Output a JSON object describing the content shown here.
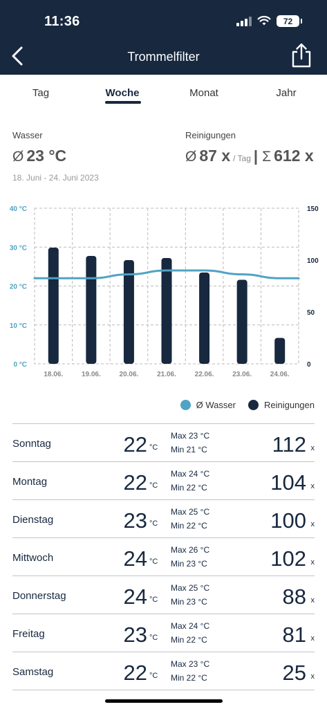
{
  "status": {
    "time": "11:36",
    "battery": "72"
  },
  "nav": {
    "title": "Trommelfilter",
    "back_icon": "chevron-left-icon",
    "share_icon": "share-icon"
  },
  "tabs": [
    {
      "label": "Tag",
      "active": false
    },
    {
      "label": "Woche",
      "active": true
    },
    {
      "label": "Monat",
      "active": false
    },
    {
      "label": "Jahr",
      "active": false
    }
  ],
  "summary": {
    "water_label": "Wasser",
    "water_symbol": "Ø",
    "water_value": "23 °C",
    "cleaning_label": "Reinigungen",
    "cleaning_symbol": "Ø",
    "cleaning_avg": "87 x",
    "per_day": "/ Tag",
    "separator": "|",
    "sum_symbol": "Σ",
    "cleaning_sum": "612 x",
    "date_range": "18. Juni - 24. Juni 2023"
  },
  "chart_data": {
    "type": "bar",
    "categories": [
      "18.06.",
      "19.06.",
      "20.06.",
      "21.06.",
      "22.06.",
      "23.06.",
      "24.06."
    ],
    "series": [
      {
        "name": "Reinigungen",
        "type": "bar",
        "axis": "right",
        "values": [
          112,
          104,
          100,
          102,
          88,
          81,
          25
        ],
        "color": "#17283f"
      },
      {
        "name": "Ø Wasser",
        "type": "line",
        "axis": "left",
        "values": [
          22,
          22,
          23,
          24,
          24,
          23,
          22
        ],
        "color": "#4fa3c4"
      }
    ],
    "y_left": {
      "min": 0,
      "max": 40,
      "ticks": [
        "0 °C",
        "10 °C",
        "20 °C",
        "30 °C",
        "40 °C"
      ],
      "color": "#4fa3c4"
    },
    "y_right": {
      "min": 0,
      "max": 150,
      "ticks": [
        "0",
        "50",
        "100",
        "150"
      ],
      "color": "#17283f"
    },
    "grid": true,
    "legend_position": "bottom-right"
  },
  "legend": [
    {
      "label": "Ø Wasser",
      "color": "#4fa3c4"
    },
    {
      "label": "Reinigungen",
      "color": "#17283f"
    }
  ],
  "rows": [
    {
      "day": "Sonntag",
      "avg": "22",
      "unit": "°C",
      "max": "Max 23 °C",
      "min": "Min  21 °C",
      "count": "112",
      "x": "x"
    },
    {
      "day": "Montag",
      "avg": "22",
      "unit": "°C",
      "max": "Max 24 °C",
      "min": "Min  22 °C",
      "count": "104",
      "x": "x"
    },
    {
      "day": "Dienstag",
      "avg": "23",
      "unit": "°C",
      "max": "Max 25 °C",
      "min": "Min  22 °C",
      "count": "100",
      "x": "x"
    },
    {
      "day": "Mittwoch",
      "avg": "24",
      "unit": "°C",
      "max": "Max 26 °C",
      "min": "Min  23 °C",
      "count": "102",
      "x": "x"
    },
    {
      "day": "Donnerstag",
      "avg": "24",
      "unit": "°C",
      "max": "Max 25 °C",
      "min": "Min  23 °C",
      "count": "88",
      "x": "x"
    },
    {
      "day": "Freitag",
      "avg": "23",
      "unit": "°C",
      "max": "Max 24 °C",
      "min": "Min  22 °C",
      "count": "81",
      "x": "x"
    },
    {
      "day": "Samstag",
      "avg": "22",
      "unit": "°C",
      "max": "Max 23 °C",
      "min": "Min  22 °C",
      "count": "25",
      "x": "x"
    }
  ]
}
